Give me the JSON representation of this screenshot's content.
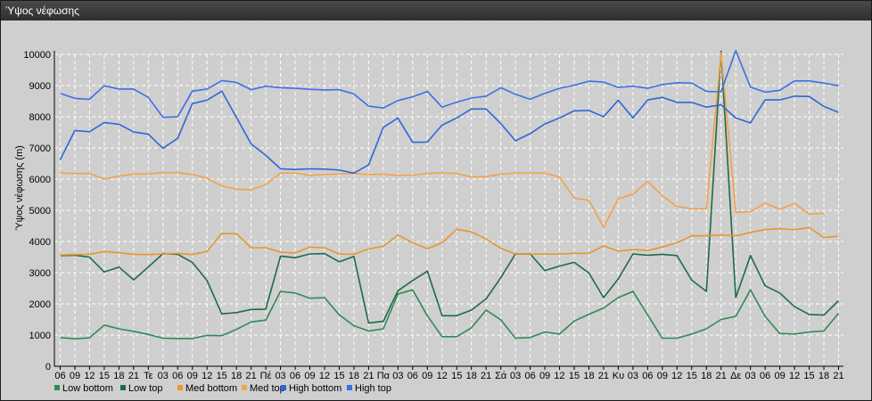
{
  "window": {
    "title": "Ύψος νέφωσης"
  },
  "chart_data": {
    "type": "line",
    "ylabel": "Ύψος νέφωσης (m)",
    "ylim": [
      0,
      10000
    ],
    "yticks": [
      0,
      1000,
      2000,
      3000,
      4000,
      5000,
      6000,
      7000,
      8000,
      9000,
      10000
    ],
    "grid": true,
    "legend_position": "bottom-left",
    "x_tick_labels": [
      "06",
      "09",
      "12",
      "15",
      "18",
      "21",
      "Τε",
      "03",
      "06",
      "09",
      "12",
      "15",
      "18",
      "21",
      "Πέ",
      "03",
      "06",
      "09",
      "12",
      "15",
      "18",
      "21",
      "Πα",
      "03",
      "06",
      "09",
      "12",
      "15",
      "18",
      "21",
      "Σά",
      "03",
      "06",
      "09",
      "12",
      "15",
      "18",
      "21",
      "Κυ",
      "03",
      "06",
      "09",
      "12",
      "15",
      "18",
      "21",
      "Δε",
      "03",
      "06",
      "09",
      "12",
      "15",
      "18",
      "21"
    ],
    "series": [
      {
        "name": "Low bottom",
        "color": "#2e8b57",
        "values": [
          920,
          880,
          910,
          1320,
          1200,
          1120,
          1020,
          900,
          890,
          890,
          990,
          980,
          1180,
          1420,
          1480,
          2400,
          2350,
          2180,
          2200,
          1650,
          1300,
          1130,
          1200,
          2320,
          2450,
          1620,
          950,
          950,
          1230,
          1800,
          1490,
          900,
          920,
          1100,
          1030,
          1450,
          1670,
          1870,
          2200,
          2400,
          1650,
          900,
          900,
          1030,
          1200,
          1500,
          1600,
          2450,
          1600,
          1050,
          1030,
          1100,
          1130,
          1700
        ]
      },
      {
        "name": "Low top",
        "color": "#1f6b45",
        "values": [
          3550,
          3560,
          3500,
          3020,
          3180,
          2770,
          3180,
          3610,
          3590,
          3330,
          2750,
          1680,
          1720,
          1820,
          1830,
          3530,
          3480,
          3600,
          3610,
          3350,
          3520,
          1390,
          1440,
          2420,
          2750,
          3050,
          1620,
          1620,
          1800,
          2160,
          2840,
          3600,
          3600,
          3070,
          3210,
          3330,
          2990,
          2200,
          2800,
          3600,
          3560,
          3590,
          3550,
          2760,
          2400,
          10100,
          2200,
          3550,
          2580,
          2350,
          1910,
          1660,
          1640,
          2100
        ]
      },
      {
        "name": "Med bottom",
        "color": "#e8962b",
        "values": [
          3570,
          3580,
          3590,
          3680,
          3640,
          3590,
          3580,
          3600,
          3620,
          3580,
          3680,
          4260,
          4250,
          3800,
          3800,
          3660,
          3630,
          3820,
          3800,
          3600,
          3590,
          3760,
          3850,
          4210,
          3960,
          3770,
          3960,
          4390,
          4310,
          4080,
          3780,
          3600,
          3590,
          3600,
          3600,
          3620,
          3620,
          3860,
          3690,
          3740,
          3710,
          3820,
          3960,
          4180,
          4180,
          4210,
          4180,
          4290,
          4380,
          4410,
          4380,
          4450,
          4130,
          4170
        ]
      },
      {
        "name": "Med top",
        "color": "#f2a24a",
        "values": [
          6200,
          6180,
          6180,
          6000,
          6100,
          6160,
          6170,
          6210,
          6210,
          6150,
          6030,
          5780,
          5680,
          5660,
          5820,
          6190,
          6200,
          6120,
          6150,
          6170,
          6180,
          6150,
          6160,
          6120,
          6130,
          6180,
          6200,
          6180,
          6070,
          6080,
          6160,
          6200,
          6200,
          6190,
          6070,
          5390,
          5320,
          4460,
          5370,
          5520,
          5930,
          5470,
          5120,
          5050,
          5050,
          10050,
          4930,
          4960,
          5230,
          5030,
          5220,
          4880,
          4900,
          null
        ]
      },
      {
        "name": "High bottom",
        "color": "#2f66d9",
        "values": [
          6620,
          7560,
          7520,
          7810,
          7760,
          7510,
          7440,
          6990,
          7310,
          8420,
          8530,
          8820,
          7980,
          7130,
          6760,
          6330,
          6310,
          6330,
          6320,
          6290,
          6190,
          6460,
          7660,
          7960,
          7180,
          7190,
          7730,
          7960,
          8250,
          8250,
          7780,
          7230,
          7460,
          7770,
          7960,
          8190,
          8200,
          8000,
          8530,
          7960,
          8540,
          8620,
          8460,
          8460,
          8310,
          8380,
          7960,
          7800,
          8540,
          8540,
          8660,
          8650,
          8330,
          8140
        ]
      },
      {
        "name": "High top",
        "color": "#3d6fe8",
        "values": [
          8750,
          8590,
          8560,
          8990,
          8890,
          8890,
          8620,
          7980,
          8000,
          8820,
          8890,
          9160,
          9100,
          8870,
          8980,
          8930,
          8910,
          8880,
          8860,
          8870,
          8730,
          8340,
          8280,
          8520,
          8640,
          8810,
          8310,
          8470,
          8600,
          8660,
          8930,
          8720,
          8560,
          8750,
          8910,
          9010,
          9140,
          9110,
          8940,
          8980,
          8910,
          9030,
          9090,
          9080,
          8810,
          8800,
          10120,
          8950,
          8790,
          8850,
          9150,
          9150,
          9080,
          8990
        ]
      }
    ]
  }
}
